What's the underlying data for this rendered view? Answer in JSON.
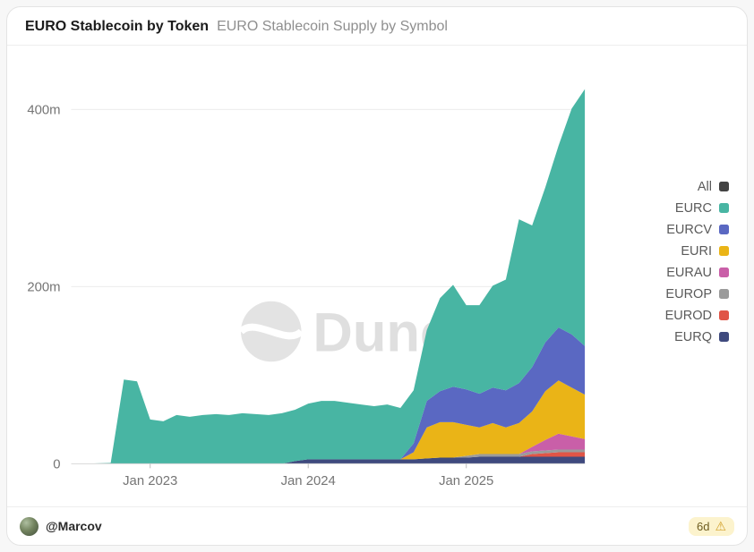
{
  "header": {
    "title": "EURO Stablecoin by Token",
    "subtitle": "EURO Stablecoin Supply by Symbol"
  },
  "legend": {
    "items": [
      {
        "label": "All",
        "color": "#434343"
      },
      {
        "label": "EURC",
        "color": "#48b5a3"
      },
      {
        "label": "EURCV",
        "color": "#5a68c2"
      },
      {
        "label": "EURI",
        "color": "#eab417"
      },
      {
        "label": "EURAU",
        "color": "#c95fa8"
      },
      {
        "label": "EUROP",
        "color": "#9b9b9b"
      },
      {
        "label": "EUROD",
        "color": "#e05547"
      },
      {
        "label": "EURQ",
        "color": "#3f4a7e"
      }
    ]
  },
  "watermark": "Dune",
  "footer": {
    "author": "@Marcov",
    "age_badge": "6d",
    "warning_icon": "⚠"
  },
  "chart_data": {
    "type": "area",
    "stacked": true,
    "title": "EURO Stablecoin Supply by Symbol",
    "unit": "millions",
    "grid": true,
    "legend_position": "right",
    "categories": [
      "2022-07",
      "2022-08",
      "2022-09",
      "2022-10",
      "2022-11",
      "2022-12",
      "2023-01",
      "2023-02",
      "2023-03",
      "2023-04",
      "2023-05",
      "2023-06",
      "2023-07",
      "2023-08",
      "2023-09",
      "2023-10",
      "2023-11",
      "2023-12",
      "2024-01",
      "2024-02",
      "2024-03",
      "2024-04",
      "2024-05",
      "2024-06",
      "2024-07",
      "2024-08",
      "2024-09",
      "2024-10",
      "2024-11",
      "2024-12",
      "2025-01",
      "2025-02",
      "2025-03",
      "2025-04",
      "2025-05",
      "2025-06",
      "2025-07",
      "2025-08",
      "2025-09",
      "2025-10"
    ],
    "series": [
      {
        "name": "EURC",
        "values": [
          0,
          0,
          0.5,
          1,
          95,
          93,
          50,
          48,
          55,
          53,
          55,
          56,
          55,
          57,
          56,
          55,
          57,
          58,
          63,
          66,
          66,
          64,
          62,
          60,
          62,
          58,
          60,
          80,
          105,
          115,
          95,
          100,
          115,
          125,
          185,
          160,
          175,
          205,
          255,
          290
        ]
      },
      {
        "name": "EURCV",
        "values": [
          0,
          0,
          0,
          0,
          0,
          0,
          0,
          0,
          0,
          0,
          0,
          0,
          0,
          0,
          0,
          0,
          0,
          0,
          0,
          0,
          0,
          0,
          0,
          0,
          0,
          0,
          10,
          30,
          35,
          40,
          40,
          38,
          40,
          42,
          45,
          50,
          55,
          60,
          60,
          55
        ]
      },
      {
        "name": "EURI",
        "values": [
          0,
          0,
          0,
          0,
          0,
          0,
          0,
          0,
          0,
          0,
          0,
          0,
          0,
          0,
          0,
          0,
          0,
          0,
          0,
          0,
          0,
          0,
          0,
          0,
          0,
          0,
          8,
          35,
          40,
          40,
          35,
          30,
          35,
          30,
          35,
          40,
          55,
          60,
          55,
          50
        ]
      },
      {
        "name": "EURAU",
        "values": [
          0,
          0,
          0,
          0,
          0,
          0,
          0,
          0,
          0,
          0,
          0,
          0,
          0,
          0,
          0,
          0,
          0,
          0,
          0,
          0,
          0,
          0,
          0,
          0,
          0,
          0,
          0,
          0,
          0,
          0,
          0,
          0,
          0,
          0,
          0,
          5,
          12,
          18,
          15,
          12
        ]
      },
      {
        "name": "EUROP",
        "values": [
          0,
          0,
          0,
          0,
          0,
          0,
          0,
          0,
          0,
          0,
          0,
          0,
          0,
          0,
          0,
          0,
          0,
          0,
          0,
          0,
          0,
          0,
          0,
          0,
          0,
          0,
          0,
          0,
          0,
          0,
          2,
          3,
          3,
          3,
          3,
          3,
          3,
          3,
          3,
          3
        ]
      },
      {
        "name": "EUROD",
        "values": [
          0,
          0,
          0,
          0,
          0,
          0,
          0,
          0,
          0,
          0,
          0,
          0,
          0,
          0,
          0,
          0,
          0,
          0,
          0,
          0,
          0,
          0,
          0,
          0,
          0,
          0,
          0,
          0,
          0,
          0,
          0,
          0,
          0,
          0,
          0,
          3,
          4,
          5,
          5,
          5
        ]
      },
      {
        "name": "EURQ",
        "values": [
          0,
          0,
          0,
          0,
          0,
          0,
          0,
          0,
          0,
          0,
          0,
          0,
          0,
          0,
          0,
          0,
          0,
          3,
          5,
          5,
          5,
          5,
          5,
          5,
          5,
          5,
          5,
          6,
          7,
          7,
          7,
          8,
          8,
          8,
          8,
          8,
          8,
          8,
          8,
          8
        ]
      }
    ],
    "stack_order": [
      "EURQ",
      "EUROD",
      "EUROP",
      "EURAU",
      "EURI",
      "EURCV",
      "EURC"
    ],
    "ylim": [
      0,
      440
    ],
    "yticks": [
      {
        "value": 0,
        "label": "0"
      },
      {
        "value": 200,
        "label": "200m"
      },
      {
        "value": 400,
        "label": "400m"
      }
    ],
    "xticks": [
      {
        "index": 6,
        "label": "Jan 2023"
      },
      {
        "index": 18,
        "label": "Jan 2024"
      },
      {
        "index": 30,
        "label": "Jan 2025"
      }
    ]
  }
}
